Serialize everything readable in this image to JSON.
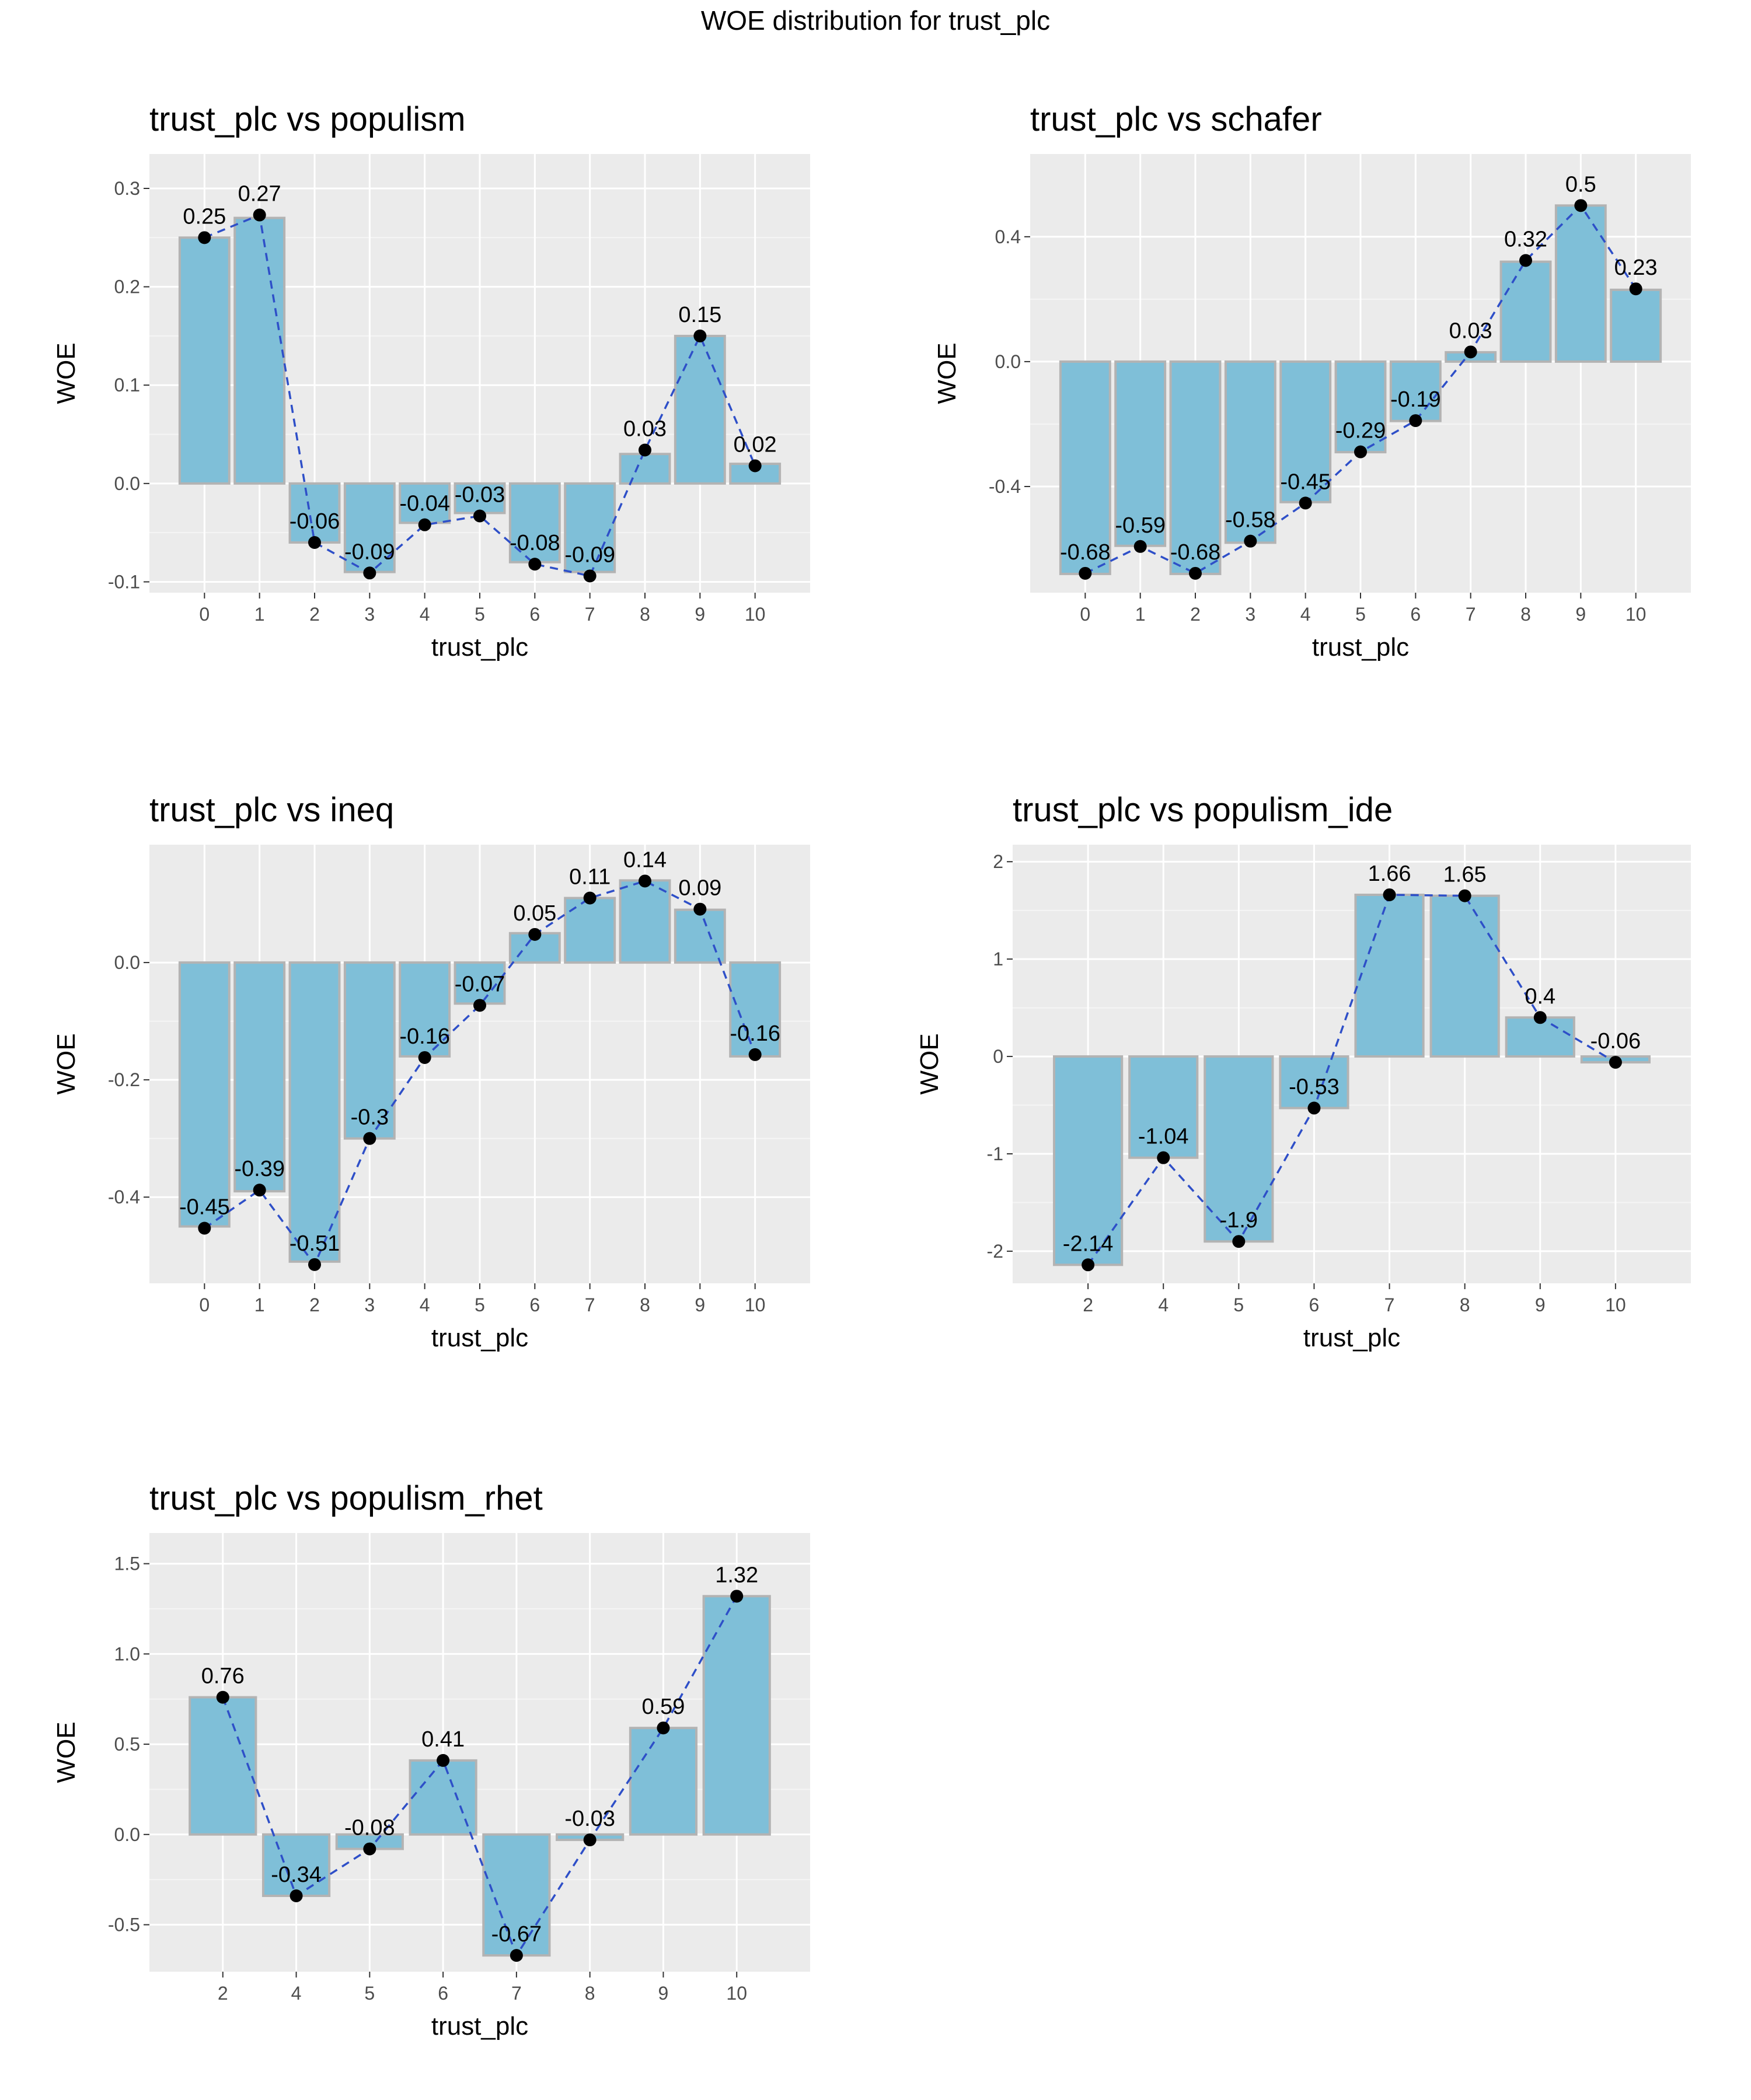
{
  "title": "WOE distribution for trust_plc",
  "style": {
    "panel_bg": "#ebebeb",
    "grid_major": "#ffffff",
    "bar_fill": "#7fbfd8",
    "bar_stroke": "#b3b3b3",
    "line_color": "#2e4fc8",
    "point_color": "#000000"
  },
  "chart_data": [
    {
      "type": "bar",
      "title": "trust_plc vs populism",
      "xlabel": "trust_plc",
      "ylabel": "WOE",
      "categories": [
        "0",
        "1",
        "2",
        "3",
        "4",
        "5",
        "6",
        "7",
        "8",
        "9",
        "10"
      ],
      "values": [
        0.25,
        0.27,
        -0.06,
        -0.09,
        -0.04,
        -0.03,
        -0.08,
        -0.09,
        0.03,
        0.15,
        0.02
      ],
      "points": [
        0.25,
        0.273,
        -0.06,
        -0.091,
        -0.042,
        -0.033,
        -0.082,
        -0.094,
        0.034,
        0.15,
        0.018
      ],
      "labels": [
        "0.25",
        "0.27",
        "-0.06",
        "-0.09",
        "-0.04",
        "-0.03",
        "-0.08",
        "-0.09",
        "0.03",
        "0.15",
        "0.02"
      ],
      "ylim": [
        -0.111,
        0.335
      ],
      "yticks": [
        -0.1,
        0,
        0.1,
        0.2,
        0.3
      ],
      "ytick_labels": [
        "-0.1",
        "0.0",
        "0.1",
        "0.2",
        "0.3"
      ]
    },
    {
      "type": "bar",
      "title": "trust_plc vs schafer",
      "xlabel": "trust_plc",
      "ylabel": "WOE",
      "categories": [
        "0",
        "1",
        "2",
        "3",
        "4",
        "5",
        "6",
        "7",
        "8",
        "9",
        "10"
      ],
      "values": [
        -0.68,
        -0.59,
        -0.68,
        -0.58,
        -0.45,
        -0.29,
        -0.19,
        0.03,
        0.32,
        0.5,
        0.23
      ],
      "points": [
        -0.678,
        -0.592,
        -0.678,
        -0.575,
        -0.453,
        -0.289,
        -0.189,
        0.031,
        0.324,
        0.5,
        0.233
      ],
      "labels": [
        "-0.68",
        "-0.59",
        "-0.68",
        "-0.58",
        "-0.45",
        "-0.29",
        "-0.19",
        "0.03",
        "0.32",
        "0.5",
        "0.23"
      ],
      "ylim": [
        -0.74,
        0.665
      ],
      "yticks": [
        -0.4,
        0,
        0.4
      ],
      "ytick_labels": [
        "-0.4",
        "0.0",
        "0.4"
      ]
    },
    {
      "type": "bar",
      "title": "trust_plc vs ineq",
      "xlabel": "trust_plc",
      "ylabel": "WOE",
      "categories": [
        "0",
        "1",
        "2",
        "3",
        "4",
        "5",
        "6",
        "7",
        "8",
        "9",
        "10"
      ],
      "values": [
        -0.45,
        -0.39,
        -0.51,
        -0.3,
        -0.16,
        -0.07,
        0.05,
        0.11,
        0.14,
        0.09,
        -0.16
      ],
      "points": [
        -0.453,
        -0.388,
        -0.515,
        -0.3,
        -0.162,
        -0.073,
        0.048,
        0.11,
        0.139,
        0.091,
        -0.157
      ],
      "labels": [
        "-0.45",
        "-0.39",
        "-0.51",
        "-0.3",
        "-0.16",
        "-0.07",
        "0.05",
        "0.11",
        "0.14",
        "0.09",
        "-0.16"
      ],
      "ylim": [
        -0.547,
        0.201
      ],
      "yticks": [
        -0.4,
        -0.2,
        0
      ],
      "ytick_labels": [
        "-0.4",
        "-0.2",
        "0.0"
      ]
    },
    {
      "type": "bar",
      "title": "trust_plc vs populism_ide",
      "xlabel": "trust_plc",
      "ylabel": "WOE",
      "categories": [
        "2",
        "4",
        "5",
        "6",
        "7",
        "8",
        "9",
        "10"
      ],
      "values": [
        -2.14,
        -1.04,
        -1.9,
        -0.53,
        1.66,
        1.65,
        0.4,
        -0.06
      ],
      "points": [
        -2.14,
        -1.04,
        -1.9,
        -0.53,
        1.66,
        1.65,
        0.4,
        -0.06
      ],
      "labels": [
        "-2.14",
        "-1.04",
        "-1.9",
        "-0.53",
        "1.66",
        "1.65",
        "0.4",
        "-0.06"
      ],
      "ylim": [
        -2.33,
        2.175
      ],
      "yticks": [
        -2,
        -1,
        0,
        1,
        2
      ],
      "ytick_labels": [
        "-2",
        "-1",
        "0",
        "1",
        "2"
      ]
    },
    {
      "type": "bar",
      "title": "trust_plc vs populism_rhet",
      "xlabel": "trust_plc",
      "ylabel": "WOE",
      "categories": [
        "2",
        "4",
        "5",
        "6",
        "7",
        "8",
        "9",
        "10"
      ],
      "values": [
        0.76,
        -0.34,
        -0.08,
        0.41,
        -0.67,
        -0.03,
        0.59,
        1.32
      ],
      "points": [
        0.76,
        -0.34,
        -0.08,
        0.41,
        -0.67,
        -0.03,
        0.59,
        1.32
      ],
      "labels": [
        "0.76",
        "-0.34",
        "-0.08",
        "0.41",
        "-0.67",
        "-0.03",
        "0.59",
        "1.32"
      ],
      "ylim": [
        -0.76,
        1.67
      ],
      "yticks": [
        -0.5,
        0,
        0.5,
        1,
        1.5
      ],
      "ytick_labels": [
        "-0.5",
        "0.0",
        "0.5",
        "1.0",
        "1.5"
      ]
    }
  ]
}
